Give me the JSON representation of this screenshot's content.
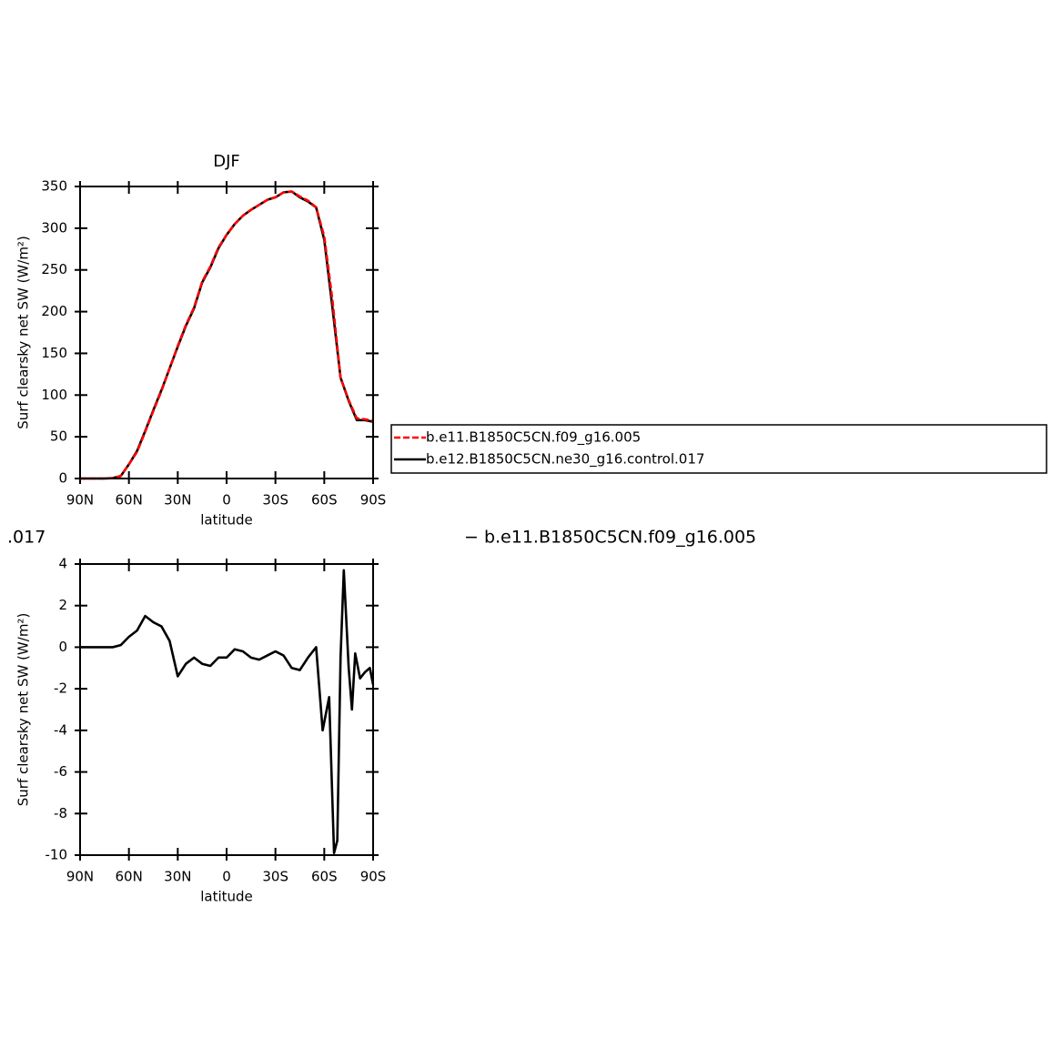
{
  "chart_data": [
    {
      "type": "line",
      "title": "DJF",
      "x_label": "latitude",
      "y_label": "Surf clearsky net SW (W/m²)",
      "x": [
        90,
        85,
        80,
        75,
        70,
        65,
        60,
        55,
        50,
        45,
        40,
        35,
        30,
        25,
        20,
        15,
        10,
        5,
        0,
        -5,
        -10,
        -15,
        -20,
        -25,
        -30,
        -35,
        -40,
        -45,
        -50,
        -55,
        -60,
        -65,
        -70,
        -75,
        -80,
        -85,
        -90
      ],
      "series": [
        {
          "name": "b.e11.B1850C5CN.f09_g16.005",
          "color": "#ff0000",
          "dashed": true,
          "values": [
            0,
            0,
            0,
            0,
            0.5,
            3,
            17,
            32,
            56,
            81,
            105,
            132,
            159,
            184,
            205,
            236,
            254,
            277,
            292,
            305,
            315,
            322,
            328,
            334,
            337,
            343,
            344,
            338,
            333,
            325,
            290,
            214,
            121,
            94,
            72,
            71,
            69
          ]
        },
        {
          "name": "b.e12.B1850C5CN.ne30_g16.control.017",
          "color": "#000000",
          "dashed": false,
          "values": [
            0,
            0,
            0,
            0,
            0.5,
            3,
            17,
            33,
            57,
            82,
            106,
            132,
            158,
            183,
            204,
            235,
            253,
            276,
            292,
            305,
            315,
            322,
            328,
            334,
            337,
            343,
            344,
            337,
            332,
            325,
            286,
            205,
            121,
            93,
            70,
            70,
            68
          ]
        }
      ],
      "xlim": [
        90,
        -90
      ],
      "xticks": [
        {
          "value": 90,
          "label": "90N"
        },
        {
          "value": 60,
          "label": "60N"
        },
        {
          "value": 30,
          "label": "30N"
        },
        0,
        {
          "value": -30,
          "label": "30S"
        },
        {
          "value": -60,
          "label": "60S"
        },
        {
          "value": -90,
          "label": "90S"
        }
      ],
      "ylim": [
        0,
        350
      ],
      "yticks": [
        0,
        50,
        100,
        150,
        200,
        250,
        300,
        350
      ],
      "grid": false
    },
    {
      "type": "line",
      "x_label": "latitude",
      "y_label": "Surf clearsky net SW (W/m²)",
      "annotations": [
        ".017",
        "− b.e11.B1850C5CN.f09_g16.005"
      ],
      "x": [
        90,
        85,
        80,
        75,
        70,
        65,
        60,
        55,
        50,
        45,
        40,
        35,
        30,
        25,
        20,
        15,
        10,
        5,
        0,
        -5,
        -10,
        -15,
        -20,
        -25,
        -30,
        -35,
        -40,
        -45,
        -50,
        -55,
        -59,
        -63,
        -66,
        -68,
        -70,
        -72,
        -75,
        -77,
        -79,
        -82,
        -85,
        -88,
        -90
      ],
      "values": [
        0,
        0,
        0,
        0,
        0,
        0.1,
        0.5,
        0.8,
        1.5,
        1.2,
        1.0,
        0.3,
        -1.4,
        -0.8,
        -0.5,
        -0.8,
        -0.9,
        -0.5,
        -0.5,
        -0.1,
        -0.2,
        -0.5,
        -0.6,
        -0.4,
        -0.2,
        -0.4,
        -1.0,
        -1.1,
        -0.5,
        0.0,
        -4.0,
        -2.4,
        -9.9,
        -9.3,
        -0.5,
        3.7,
        -1.0,
        -3.0,
        -0.3,
        -1.5,
        -1.2,
        -1.0,
        -1.8
      ],
      "color": "#000000",
      "xlim": [
        90,
        -90
      ],
      "xticks": [
        {
          "value": 90,
          "label": "90N"
        },
        {
          "value": 60,
          "label": "60N"
        },
        {
          "value": 30,
          "label": "30N"
        },
        0,
        {
          "value": -30,
          "label": "30S"
        },
        {
          "value": -60,
          "label": "60S"
        },
        {
          "value": -90,
          "label": "90S"
        }
      ],
      "ylim": [
        -10,
        4
      ],
      "yticks": [
        -10,
        -8,
        -6,
        -4,
        -2,
        0,
        2,
        4
      ],
      "grid": false
    }
  ]
}
